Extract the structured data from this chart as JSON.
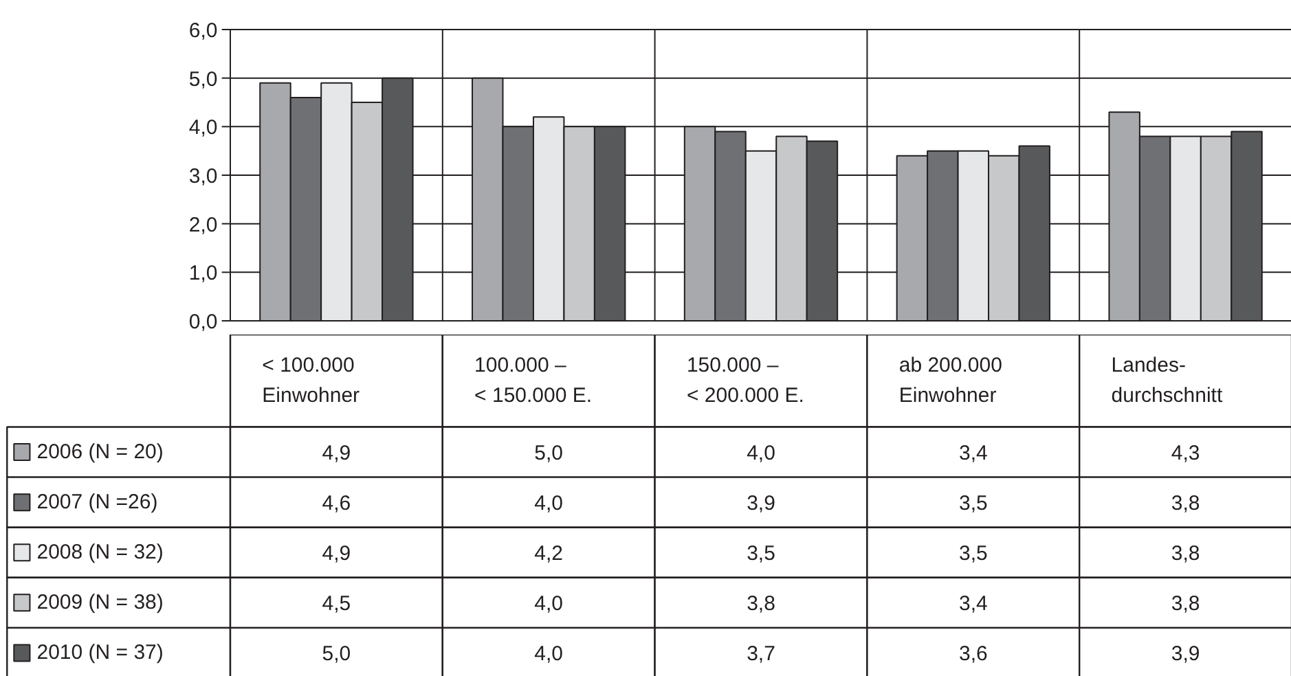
{
  "chart_data": {
    "type": "bar",
    "categories": [
      "< 100.000\nEinwohner",
      "100.000 –\n< 150.000 E.",
      "150.000 –\n< 200.000 E.",
      "ab 200.000\nEinwohner",
      "Landes-\ndurchschnitt"
    ],
    "series": [
      {
        "name": "2006 (N = 20)",
        "color": "#a8a9ad",
        "values": [
          4.9,
          5.0,
          4.0,
          3.4,
          4.3
        ],
        "value_labels": [
          "4,9",
          "5,0",
          "4,0",
          "3,4",
          "4,3"
        ]
      },
      {
        "name": "2007 (N =26)",
        "color": "#6f7073",
        "values": [
          4.6,
          4.0,
          3.9,
          3.5,
          3.8
        ],
        "value_labels": [
          "4,6",
          "4,0",
          "3,9",
          "3,5",
          "3,8"
        ]
      },
      {
        "name": "2008 (N =  32)",
        "color": "#e6e7e8",
        "values": [
          4.9,
          4.2,
          3.5,
          3.5,
          3.8
        ],
        "value_labels": [
          "4,9",
          "4,2",
          "3,5",
          "3,5",
          "3,8"
        ]
      },
      {
        "name": "2009 (N = 38)",
        "color": "#c7c8ca",
        "values": [
          4.5,
          4.0,
          3.8,
          3.4,
          3.8
        ],
        "value_labels": [
          "4,5",
          "4,0",
          "3,8",
          "3,4",
          "3,8"
        ]
      },
      {
        "name": "2010 (N = 37)",
        "color": "#58595b",
        "values": [
          5.0,
          4.0,
          3.7,
          3.6,
          3.9
        ],
        "value_labels": [
          "5,0",
          "4,0",
          "3,7",
          "3,6",
          "3,9"
        ]
      }
    ],
    "ylim": [
      0,
      6
    ],
    "yticks": [
      {
        "value": 0,
        "label": "0,0"
      },
      {
        "value": 1,
        "label": "1,0"
      },
      {
        "value": 2,
        "label": "2,0"
      },
      {
        "value": 3,
        "label": "3,0"
      },
      {
        "value": 4,
        "label": "4,0"
      },
      {
        "value": 5,
        "label": "5,0"
      },
      {
        "value": 6,
        "label": "6,0"
      }
    ],
    "grid": "y",
    "legend": "bottom left"
  }
}
